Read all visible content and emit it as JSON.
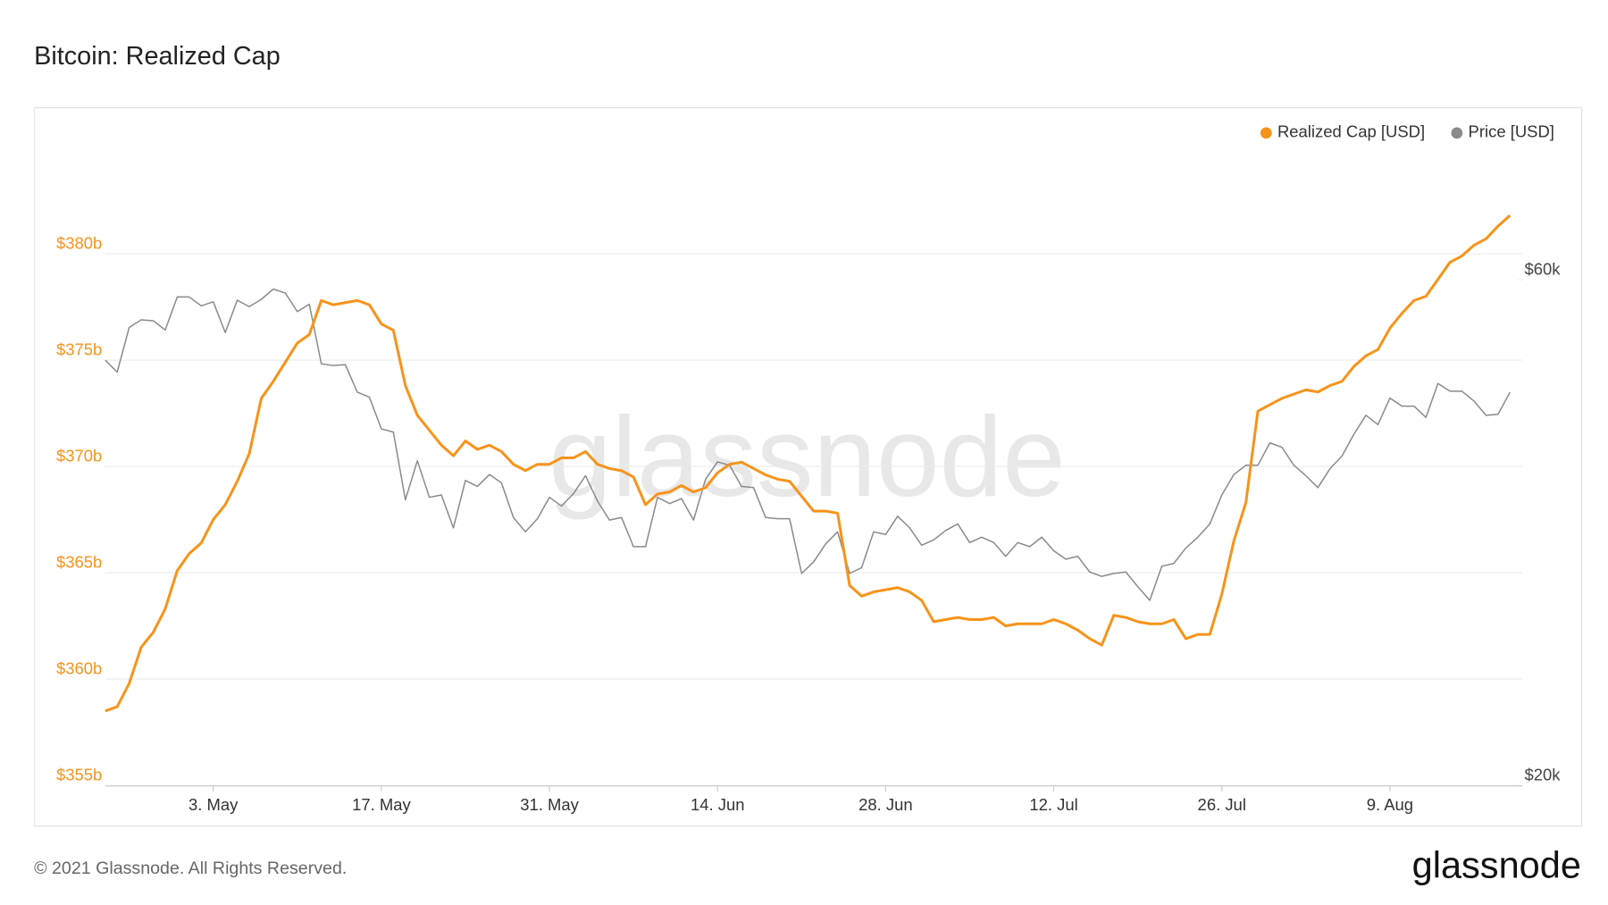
{
  "chart_data": {
    "type": "line",
    "title": "Bitcoin: Realized Cap",
    "watermark": "glassnode",
    "legend": "top-right",
    "grid": true,
    "categories": [
      null,
      null,
      null,
      null,
      null,
      null,
      null,
      null,
      null,
      "3. May",
      null,
      null,
      null,
      null,
      null,
      null,
      null,
      null,
      null,
      null,
      null,
      null,
      null,
      "17. May",
      null,
      null,
      null,
      null,
      null,
      null,
      null,
      null,
      null,
      null,
      null,
      null,
      null,
      "31. May",
      null,
      null,
      null,
      null,
      null,
      null,
      null,
      null,
      null,
      null,
      null,
      null,
      null,
      "14. Jun",
      null,
      null,
      null,
      null,
      null,
      null,
      null,
      null,
      null,
      null,
      null,
      null,
      null,
      "28. Jun",
      null,
      null,
      null,
      null,
      null,
      null,
      null,
      null,
      null,
      null,
      null,
      null,
      null,
      "12. Jul",
      null,
      null,
      null,
      null,
      null,
      null,
      null,
      null,
      null,
      null,
      null,
      null,
      null,
      "26. Jul",
      null,
      null,
      null,
      null,
      null,
      null,
      null,
      null,
      null,
      null,
      null,
      null,
      null,
      "9. Aug",
      null,
      null,
      null,
      null,
      null,
      null,
      null,
      null,
      null,
      null
    ],
    "ylim": [
      355,
      385
    ],
    "yticks": [
      {
        "value": 355,
        "label": "$355b"
      },
      {
        "value": 360,
        "label": "$360b"
      },
      {
        "value": 365,
        "label": "$365b"
      },
      {
        "value": 370,
        "label": "$370b"
      },
      {
        "value": 375,
        "label": "$375b"
      },
      {
        "value": 380,
        "label": "$380b"
      }
    ],
    "y2lim": [
      20,
      80
    ],
    "y2log": true,
    "y2ticks": [
      {
        "value": 20,
        "label": "$20k"
      },
      {
        "value": 60,
        "label": "$60k"
      }
    ],
    "series": [
      {
        "name": "Realized Cap [USD]",
        "color": "#f7931a",
        "values": [
          358.5,
          358.7,
          359.8,
          361.5,
          362.2,
          363.3,
          365.1,
          365.9,
          366.4,
          367.5,
          368.2,
          369.3,
          370.6,
          373.2,
          374.0,
          374.9,
          375.8,
          376.2,
          377.8,
          377.6,
          377.7,
          377.8,
          377.6,
          376.7,
          376.4,
          373.8,
          372.4,
          371.7,
          371.0,
          370.5,
          371.2,
          370.8,
          371.0,
          370.7,
          370.1,
          369.8,
          370.1,
          370.1,
          370.4,
          370.4,
          370.7,
          370.1,
          369.9,
          369.8,
          369.5,
          368.2,
          368.7,
          368.8,
          369.1,
          368.8,
          369.0,
          369.7,
          370.1,
          370.2,
          369.9,
          369.6,
          369.4,
          369.3,
          368.6,
          367.9,
          367.9,
          367.8,
          364.4,
          363.9,
          364.1,
          364.2,
          364.3,
          364.1,
          363.7,
          362.7,
          362.8,
          362.9,
          362.8,
          362.8,
          362.9,
          362.5,
          362.6,
          362.6,
          362.6,
          362.8,
          362.6,
          362.3,
          361.9,
          361.6,
          363.0,
          362.9,
          362.7,
          362.6,
          362.6,
          362.8,
          361.9,
          362.1,
          362.1,
          364.0,
          366.5,
          368.3,
          372.6,
          372.9,
          373.2,
          373.4,
          373.6,
          373.5,
          373.8,
          374.0,
          374.7,
          375.2,
          375.5,
          376.5,
          377.2,
          377.8,
          378.0,
          378.8,
          379.6,
          379.9,
          380.4,
          380.7,
          381.3,
          381.8
        ]
      },
      {
        "name": "Price [USD]",
        "color": "#8a8a8a",
        "axis": "y2",
        "values": [
          50.4,
          49.1,
          54.1,
          55.0,
          54.9,
          53.8,
          57.8,
          57.8,
          56.7,
          57.2,
          53.5,
          57.4,
          56.6,
          57.5,
          58.8,
          58.3,
          56.0,
          56.9,
          50.0,
          49.8,
          49.9,
          47.0,
          46.5,
          43.4,
          43.1,
          37.2,
          40.5,
          37.4,
          37.6,
          35.0,
          38.8,
          38.3,
          39.3,
          38.6,
          35.8,
          34.7,
          35.7,
          37.4,
          36.7,
          37.7,
          39.2,
          37.1,
          35.6,
          35.8,
          33.6,
          33.6,
          37.4,
          36.9,
          37.3,
          35.6,
          38.9,
          40.4,
          40.1,
          38.3,
          38.2,
          35.8,
          35.7,
          35.7,
          31.7,
          32.5,
          33.8,
          34.7,
          31.7,
          32.1,
          34.7,
          34.5,
          35.9,
          35.0,
          33.7,
          34.1,
          34.8,
          35.3,
          33.9,
          34.3,
          33.9,
          32.9,
          33.9,
          33.6,
          34.3,
          33.3,
          32.7,
          32.9,
          31.8,
          31.5,
          31.7,
          31.8,
          30.8,
          29.9,
          32.2,
          32.4,
          33.5,
          34.3,
          35.3,
          37.6,
          39.3,
          40.1,
          40.1,
          42.1,
          41.7,
          40.1,
          39.2,
          38.2,
          39.8,
          40.9,
          42.9,
          44.7,
          43.8,
          46.4,
          45.6,
          45.6,
          44.5,
          47.9,
          47.1,
          47.1,
          46.1,
          44.7,
          44.8,
          47.0
        ]
      }
    ]
  },
  "footer": {
    "copyright": "© 2021 Glassnode. All Rights Reserved.",
    "logo": "glassnode"
  }
}
